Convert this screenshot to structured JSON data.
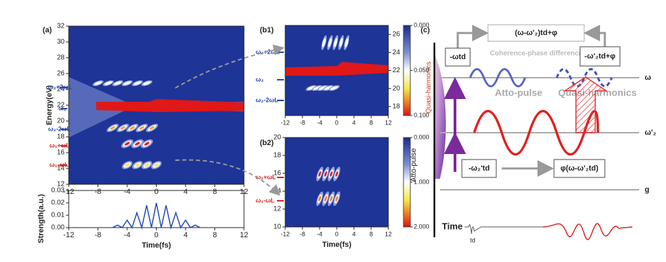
{
  "chart_data": [
    {
      "type": "heatmap",
      "panel": "(a)",
      "ylabel": "Energy(eV)",
      "xlim": [
        -12,
        12
      ],
      "xticks": [
        -12,
        -8,
        -4,
        0,
        4,
        8,
        12
      ],
      "ylim": [
        12,
        32
      ],
      "yticks": [
        12,
        14,
        16,
        18,
        20,
        22,
        24,
        26,
        28,
        30,
        32
      ],
      "annotations": [
        "ω₂+2ωL",
        "ω₂",
        "ω₂-2ωL",
        "ω₁+ωL",
        "ω₁-ωL"
      ]
    },
    {
      "type": "line",
      "ylabel": "Strength(a.u.)",
      "xlabel": "Time(fs)",
      "x": [
        -6,
        -5.33,
        -4.67,
        -4,
        -3.33,
        -2.67,
        -2,
        -1.33,
        -0.67,
        0,
        0.67,
        1.33,
        2,
        2.67,
        3.33,
        4,
        4.67,
        5.33,
        6
      ],
      "series": [
        {
          "color": "#2a52b8",
          "values": [
            0,
            0.002,
            0,
            0.006,
            0,
            0.012,
            0,
            0.018,
            0,
            0.02,
            0,
            0.018,
            0,
            0.012,
            0,
            0.006,
            0,
            0.002,
            0
          ]
        }
      ],
      "xlim": [
        -12,
        12
      ],
      "xticks": [
        -12,
        -8,
        -4,
        0,
        4,
        8,
        12
      ],
      "ylim": [
        0,
        0.03
      ],
      "yticks": [
        {
          "value": 0,
          "label": "0.00"
        },
        0.01,
        0.02,
        0.03
      ]
    },
    {
      "type": "heatmap",
      "panel": "(b1)",
      "xlim": [
        -12,
        12
      ],
      "xticks": [
        -12,
        -8,
        -4,
        0,
        4,
        8,
        12
      ],
      "ylim": [
        17,
        27
      ],
      "yticks": [
        18,
        20,
        22,
        24,
        26
      ],
      "colorbar_lim": [
        0,
        0.1
      ],
      "colorbar_ticks": [
        {
          "value": 0,
          "label": "0.000"
        },
        {
          "value": 0.05,
          "label": "0.050"
        },
        {
          "value": 0.1,
          "label": "0.100"
        }
      ],
      "annotations": [
        "ω₂+2ωL",
        "ω₂",
        "ω₂-2ωL"
      ]
    },
    {
      "type": "heatmap",
      "panel": "(b2)",
      "xlabel": "Time(fs)",
      "xlim": [
        -12,
        12
      ],
      "xticks": [
        -12,
        -8,
        -4,
        0,
        4,
        8,
        12
      ],
      "ylim": [
        10,
        20
      ],
      "yticks": [
        10,
        12,
        14,
        16,
        18,
        20
      ],
      "colorbar_lim": [
        0,
        2
      ],
      "colorbar_ticks": [
        {
          "value": 0,
          "label": "0.000"
        },
        {
          "value": 1,
          "label": "1.000"
        },
        {
          "value": 2,
          "label": "2.000"
        }
      ],
      "annotations": [
        "ω₁+ωL",
        "ω₁-ωL"
      ]
    }
  ],
  "diagram": {
    "panel": "(c)",
    "top_formula": "(ω-ω'₂)td+φ",
    "coherence": "Coherence-phase difference",
    "box_left": "-ωtd",
    "box_right": "-ω'₂td+φ",
    "atto_pulse": "Atto-pulse",
    "quasi_harmonics": "Quasi-harmonics",
    "level_w": "ω",
    "level_w2": "ω'₂",
    "level_g": "g",
    "box_bottom_left": "-ω₂'td",
    "box_bottom_right": "φ(ω-ω'₂td)",
    "time": "Time",
    "td": "td",
    "side_quasi": "Quasi-harmonics",
    "side_atto": "Atto-pulse"
  }
}
